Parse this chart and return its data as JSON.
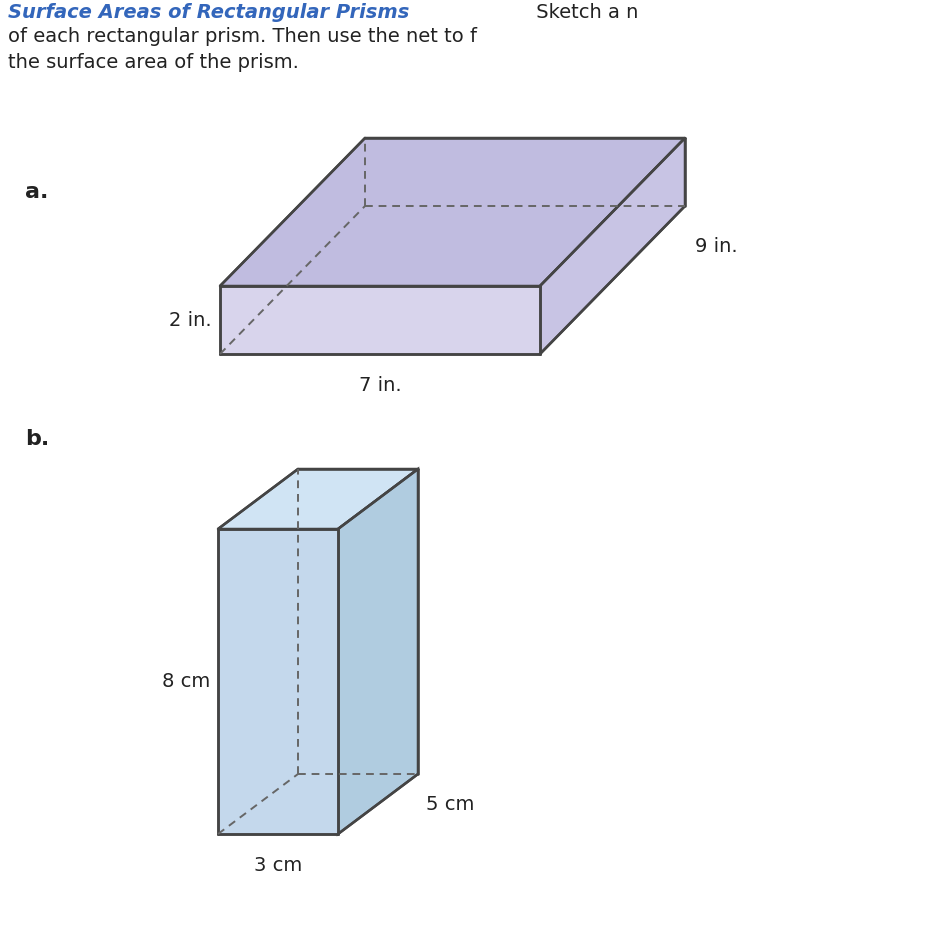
{
  "title_color": "#3366bb",
  "text_color": "#222222",
  "bg_color": "#ffffff",
  "prism_a": {
    "label": "a.",
    "dim_labels": [
      "2 in.",
      "7 in.",
      "9 in."
    ],
    "face_top_color": "#c0bce0",
    "face_front_color": "#d8d4ec",
    "face_side_color": "#c8c4e4",
    "edge_color": "#444444",
    "dashed_color": "#666666"
  },
  "prism_b": {
    "label": "b.",
    "dim_labels": [
      "8 cm",
      "3 cm",
      "5 cm"
    ],
    "face_front_color": "#c4d8ec",
    "face_side_color": "#b0cce0",
    "face_top_color": "#d0e4f4",
    "edge_color": "#444444",
    "dashed_color": "#666666"
  },
  "header": {
    "title_bold": "Surface Areas of Rectangular Prisms",
    "title_normal": " Sketch a n",
    "line2": "of each rectangular prism. Then use the net to f",
    "line3": "the surface area of the prism."
  }
}
